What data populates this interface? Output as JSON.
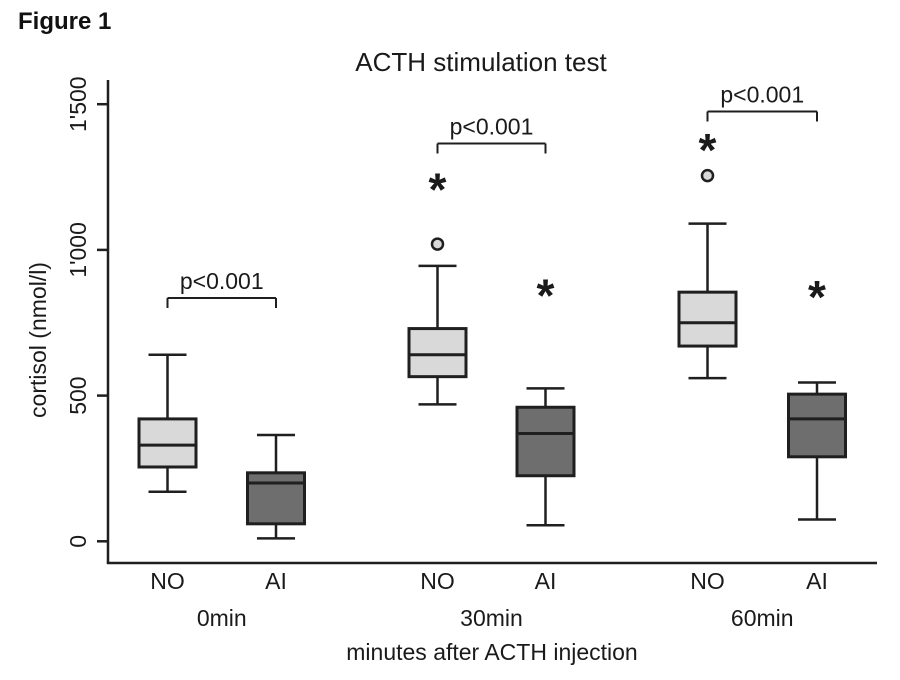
{
  "figure_label": "Figure 1",
  "chart_data": {
    "type": "box",
    "title": "ACTH stimulation test",
    "ylabel": "cortisol (nmol/l)",
    "xlabel": "minutes after ACTH injection",
    "ylim": [
      0,
      1500
    ],
    "yticks": [
      0,
      500,
      1000,
      1500
    ],
    "ytick_labels": [
      "0",
      "500",
      "1'000",
      "1'500"
    ],
    "series": [
      "NO",
      "AI"
    ],
    "series_colors": {
      "NO": "#d9d9d9",
      "AI": "#6e6e6e"
    },
    "line_color": "#1f1f1f",
    "grid": false,
    "legend": "none",
    "groups": [
      {
        "label": "0min",
        "significance": "p<0.001",
        "boxes": [
          {
            "series": "NO",
            "whisker_low": 170,
            "q1": 255,
            "median": 330,
            "q3": 420,
            "whisker_high": 640,
            "outliers_circle": [],
            "outliers_star": []
          },
          {
            "series": "AI",
            "whisker_low": 10,
            "q1": 60,
            "median": 200,
            "q3": 235,
            "whisker_high": 365,
            "outliers_circle": [],
            "outliers_star": []
          }
        ]
      },
      {
        "label": "30min",
        "significance": "p<0.001",
        "boxes": [
          {
            "series": "NO",
            "whisker_low": 470,
            "q1": 565,
            "median": 640,
            "q3": 730,
            "whisker_high": 945,
            "outliers_circle": [
              1020
            ],
            "outliers_star": [
              1225
            ]
          },
          {
            "series": "AI",
            "whisker_low": 55,
            "q1": 225,
            "median": 370,
            "q3": 460,
            "whisker_high": 525,
            "outliers_circle": [],
            "outliers_star": [
              860
            ]
          }
        ]
      },
      {
        "label": "60min",
        "significance": "p<0.001",
        "boxes": [
          {
            "series": "NO",
            "whisker_low": 560,
            "q1": 670,
            "median": 750,
            "q3": 855,
            "whisker_high": 1090,
            "outliers_circle": [
              1255
            ],
            "outliers_star": [
              1360
            ]
          },
          {
            "series": "AI",
            "whisker_low": 75,
            "q1": 290,
            "median": 420,
            "q3": 505,
            "whisker_high": 545,
            "outliers_circle": [],
            "outliers_star": [
              855
            ]
          }
        ]
      }
    ]
  }
}
